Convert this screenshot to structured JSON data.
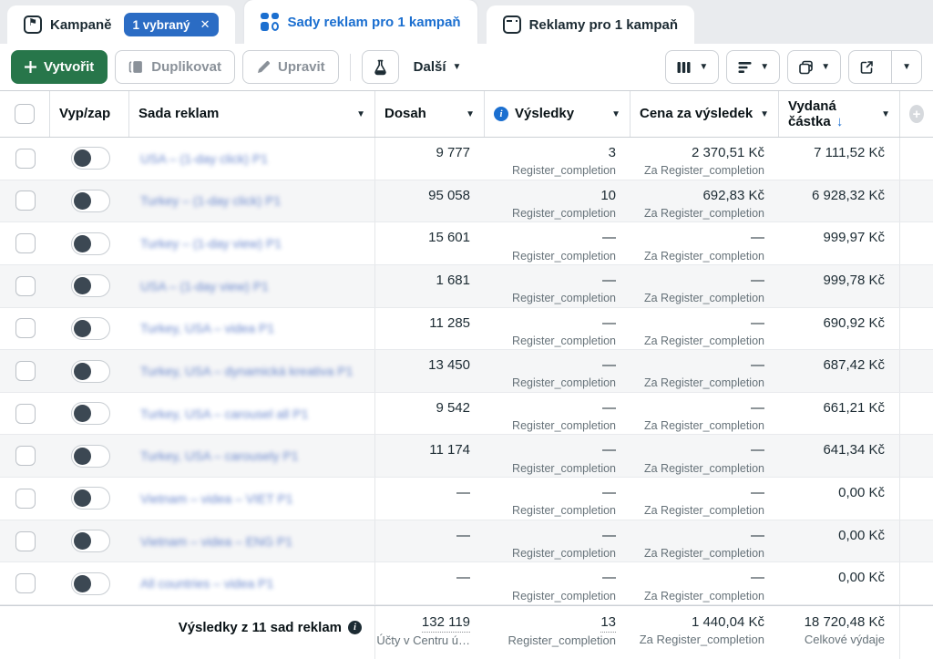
{
  "colors": {
    "accent_blue": "#1b6fd0",
    "badge_blue": "#2b6cc4",
    "green": "#27764a"
  },
  "tabs": [
    {
      "label": "Kampaně",
      "badge": "1 vybraný",
      "badge_close": "✕"
    },
    {
      "label": "Sady reklam pro 1 kampaň",
      "active": true
    },
    {
      "label": "Reklamy pro 1 kampaň"
    }
  ],
  "toolbar": {
    "create_label": "Vytvořit",
    "duplicate_label": "Duplikovat",
    "edit_label": "Upravit",
    "more_label": "Další"
  },
  "table": {
    "headers": {
      "toggle": "Vyp/zap",
      "name": "Sada reklam",
      "reach": "Dosah",
      "results": "Výsledky",
      "cost": "Cena za výsledek",
      "spent": "Vydaná částka",
      "sort_arrow": "↓"
    },
    "rows": [
      {
        "name": "USA – (1-day click) P1",
        "reach": "9 777",
        "results": "3",
        "results_label": "Register_completion",
        "cost": "2 370,51 Kč",
        "cost_label": "Za Register_completion",
        "spent": "7 111,52 Kč"
      },
      {
        "name": "Turkey – (1-day click) P1",
        "reach": "95 058",
        "results": "10",
        "results_label": "Register_completion",
        "cost": "692,83 Kč",
        "cost_label": "Za Register_completion",
        "spent": "6 928,32 Kč"
      },
      {
        "name": "Turkey – (1-day view) P1",
        "reach": "15 601",
        "results": "—",
        "results_label": "Register_completion",
        "cost": "—",
        "cost_label": "Za Register_completion",
        "spent": "999,97 Kč"
      },
      {
        "name": "USA – (1-day view) P1",
        "reach": "1 681",
        "results": "—",
        "results_label": "Register_completion",
        "cost": "—",
        "cost_label": "Za Register_completion",
        "spent": "999,78 Kč"
      },
      {
        "name": "Turkey, USA – videa P1",
        "reach": "11 285",
        "results": "—",
        "results_label": "Register_completion",
        "cost": "—",
        "cost_label": "Za Register_completion",
        "spent": "690,92 Kč"
      },
      {
        "name": "Turkey, USA – dynamická kreativa P1",
        "reach": "13 450",
        "results": "—",
        "results_label": "Register_completion",
        "cost": "—",
        "cost_label": "Za Register_completion",
        "spent": "687,42 Kč"
      },
      {
        "name": "Turkey, USA – carousel all P1",
        "reach": "9 542",
        "results": "—",
        "results_label": "Register_completion",
        "cost": "—",
        "cost_label": "Za Register_completion",
        "spent": "661,21 Kč"
      },
      {
        "name": "Turkey, USA – carousely P1",
        "reach": "11 174",
        "results": "—",
        "results_label": "Register_completion",
        "cost": "—",
        "cost_label": "Za Register_completion",
        "spent": "641,34 Kč"
      },
      {
        "name": "Vietnam – videa – VIET P1",
        "reach": "—",
        "results": "—",
        "results_label": "Register_completion",
        "cost": "—",
        "cost_label": "Za Register_completion",
        "spent": "0,00 Kč"
      },
      {
        "name": "Vietnam – videa – ENG P1",
        "reach": "—",
        "results": "—",
        "results_label": "Register_completion",
        "cost": "—",
        "cost_label": "Za Register_completion",
        "spent": "0,00 Kč"
      },
      {
        "name": "All countries – videa P1",
        "reach": "—",
        "results": "—",
        "results_label": "Register_completion",
        "cost": "—",
        "cost_label": "Za Register_completion",
        "spent": "0,00 Kč"
      }
    ],
    "footer": {
      "summary": "Výsledky z 11 sad reklam",
      "reach": "132 119",
      "reach_label": "Účty v Centru ú…",
      "results": "13",
      "results_label": "Register_completion",
      "cost": "1 440,04 Kč",
      "cost_label": "Za Register_completion",
      "spent": "18 720,48 Kč",
      "spent_label": "Celkové výdaje"
    }
  }
}
